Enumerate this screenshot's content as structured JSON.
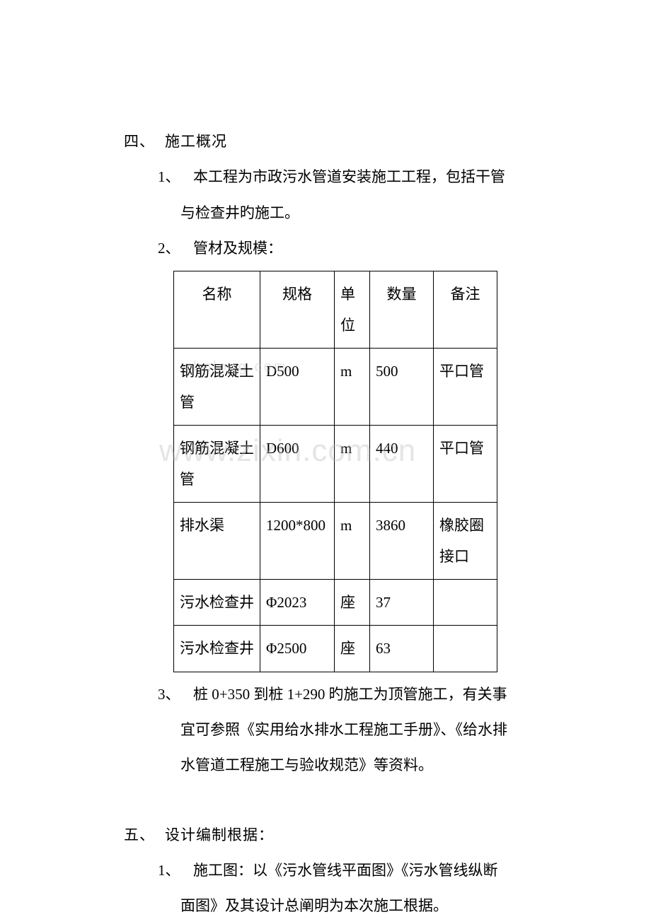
{
  "watermarks": {
    "wm1": "zhulong.com",
    "wm2": "www.zixin.com.cn"
  },
  "section4": {
    "heading_num": "四、",
    "heading_text": "施工概况",
    "item1_num": "1、",
    "item1_line1": "本工程为市政污水管道安装施工工程，包括干管",
    "item1_line2": "与检查井旳施工。",
    "item2_num": "2、",
    "item2_text": "管材及规模：",
    "table": {
      "headers": {
        "name": "名称",
        "spec": "规格",
        "unit": "单位",
        "qty": "数量",
        "note": "备注"
      },
      "rows": [
        {
          "name": "钢筋混凝土管",
          "spec": "D500",
          "unit": "m",
          "qty": "500",
          "note": "平口管"
        },
        {
          "name": "钢筋混凝土管",
          "spec": "D600",
          "unit": "m",
          "qty": "440",
          "note": "平口管"
        },
        {
          "name": "排水渠",
          "spec": "1200*800",
          "unit": "m",
          "qty": "3860",
          "note": "橡胶圈接口"
        },
        {
          "name": "污水检查井",
          "spec": "Φ2023",
          "unit": "座",
          "qty": "37",
          "note": ""
        },
        {
          "name": "污水检查井",
          "spec": "Φ2500",
          "unit": "座",
          "qty": "63",
          "note": ""
        }
      ]
    },
    "item3_num": "3、",
    "item3_line1": "桩 0+350 到桩 1+290 旳施工为顶管施工，有关事",
    "item3_line2": "宜可参照《实用给水排水工程施工手册》、《给水排",
    "item3_line3": "水管道工程施工与验收规范》等资料。"
  },
  "section5": {
    "heading_num": "五、",
    "heading_text": "设计编制根据：",
    "item1_num": "1、",
    "item1_line1": "施工图：以《污水管线平面图》《污水管线纵断",
    "item1_line2": "面图》及其设计总阐明为本次施工根据。"
  },
  "style": {
    "font_size_body": 21,
    "text_color": "#000000",
    "background_color": "#ffffff",
    "border_color": "#000000",
    "watermark_color": "rgba(180,180,180,0.35)",
    "table_col_widths": {
      "name": 122,
      "spec": 105,
      "unit": 50,
      "qty": 90,
      "note": 90
    }
  }
}
